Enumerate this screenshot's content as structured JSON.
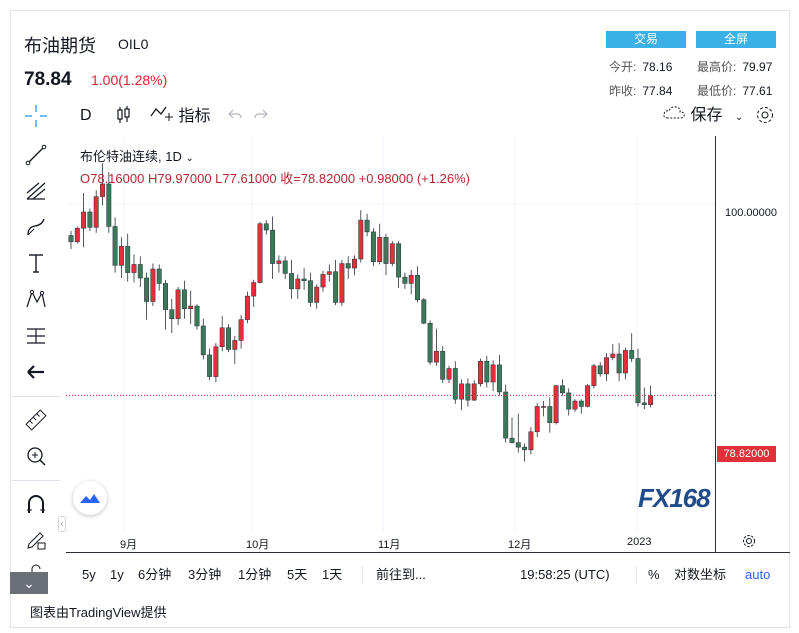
{
  "header": {
    "symbol_name": "布油期货",
    "symbol_code": "OIL0",
    "last_price": "78.84",
    "change": "1.00(1.28%)",
    "trade_button": "交易",
    "fullscreen_button": "全屏",
    "stats": {
      "open_label": "今开:",
      "open": "78.16",
      "high_label": "最高价:",
      "high": "79.97",
      "prev_close_label": "昨收:",
      "prev_close": "77.84",
      "low_label": "最低价:",
      "low": "77.61"
    }
  },
  "toolbar": {
    "interval": "D",
    "indicators_label": "指标",
    "save_label": "保存"
  },
  "legend": {
    "title": "布伦特油连续, 1D",
    "ohlc": "O78.16000  H79.97000  L77.61000  收=78.82000  +0.98000 (+1.26%)"
  },
  "price_axis": {
    "level_label": "100.00000",
    "current_price_tag": "78.82000"
  },
  "time_axis": {
    "ticks": [
      "9月",
      "10月",
      "11月",
      "12月",
      "2023"
    ]
  },
  "bottom_bar": {
    "ranges": [
      "5y",
      "1y",
      "6分钟",
      "3分钟",
      "1分钟",
      "5天",
      "1天"
    ],
    "goto": "前往到...",
    "time": "19:58:25 (UTC)",
    "percent": "%",
    "log_scale": "对数坐标",
    "auto": "auto"
  },
  "credit": "图表由TradingView提供",
  "watermark": "FX168",
  "colors": {
    "up": "#e0303a",
    "down": "#3a7a5a",
    "accent": "#3ab0e6"
  },
  "chart_data": {
    "type": "candlestick",
    "x": [
      "9月",
      "10月",
      "11月",
      "12月",
      "2023"
    ],
    "ohlc": [
      [
        96.5,
        97,
        95,
        95.8
      ],
      [
        95.8,
        97.5,
        95.6,
        97.3
      ],
      [
        97.3,
        101.2,
        95.2,
        99.1
      ],
      [
        99.1,
        99.5,
        97,
        97.4
      ],
      [
        97.4,
        101.5,
        96.8,
        100.8
      ],
      [
        100.8,
        104.5,
        99.8,
        102.2
      ],
      [
        102.2,
        103.5,
        96.8,
        97.5
      ],
      [
        97.5,
        98.5,
        92.4,
        93.2
      ],
      [
        93.2,
        96.3,
        91.8,
        95.3
      ],
      [
        95.3,
        96.7,
        91.4,
        92.4
      ],
      [
        92.4,
        94.4,
        91.3,
        93.3
      ],
      [
        93.3,
        94.2,
        90.8,
        91.8
      ],
      [
        91.8,
        92.4,
        87.2,
        89.2
      ],
      [
        89.2,
        93.4,
        88.7,
        92.8
      ],
      [
        92.8,
        93.3,
        90.4,
        91.2
      ],
      [
        91.2,
        91.6,
        86.1,
        88.3
      ],
      [
        88.3,
        89.5,
        85.7,
        87.3
      ],
      [
        87.3,
        90.8,
        86.6,
        90.5
      ],
      [
        90.5,
        91.5,
        87.3,
        88.4
      ],
      [
        88.4,
        90.4,
        86.7,
        88.7
      ],
      [
        88.7,
        88.9,
        86.1,
        86.5
      ],
      [
        86.5,
        87.3,
        82.8,
        83.3
      ],
      [
        83.3,
        84,
        80.5,
        80.9
      ],
      [
        80.9,
        84.6,
        80.3,
        84.2
      ],
      [
        84.2,
        87.6,
        83.7,
        86.3
      ],
      [
        86.3,
        86.7,
        83.6,
        83.9
      ],
      [
        83.9,
        85.4,
        82.3,
        84.9
      ],
      [
        84.9,
        87.7,
        84,
        87.2
      ],
      [
        87.2,
        90.3,
        86.8,
        89.8
      ],
      [
        89.8,
        91.6,
        88.6,
        91.3
      ],
      [
        91.3,
        98,
        91.2,
        97.8
      ],
      [
        97.8,
        98.2,
        96.6,
        97.1
      ],
      [
        97.1,
        98.6,
        91.7,
        93.4
      ],
      [
        93.4,
        94.3,
        92.4,
        93.7
      ],
      [
        93.7,
        94.2,
        91.7,
        92.3
      ],
      [
        92.3,
        93.8,
        89.5,
        90.6
      ],
      [
        90.6,
        92.2,
        89.5,
        91.7
      ],
      [
        91.7,
        92.9,
        90.5,
        91.5
      ],
      [
        91.5,
        92.4,
        88.6,
        89.1
      ],
      [
        89.1,
        91.1,
        88.4,
        90.8
      ],
      [
        90.8,
        92.6,
        90.3,
        92.2
      ],
      [
        92.2,
        93.3,
        91.4,
        92.5
      ],
      [
        92.5,
        93.8,
        88.8,
        89.1
      ],
      [
        89.1,
        93.8,
        88.7,
        93.4
      ],
      [
        93.4,
        94.2,
        91.7,
        92.9
      ],
      [
        92.9,
        94.3,
        92.1,
        93.9
      ],
      [
        93.9,
        99.3,
        93.5,
        98.2
      ],
      [
        98.2,
        98.9,
        96.4,
        96.9
      ],
      [
        96.9,
        97.3,
        93.1,
        93.6
      ],
      [
        93.6,
        97.8,
        93.3,
        96.3
      ],
      [
        96.3,
        96.7,
        92.1,
        93.4
      ],
      [
        93.4,
        95.9,
        93.1,
        95.6
      ],
      [
        95.6,
        95.9,
        90.7,
        91.9
      ],
      [
        91.9,
        92.4,
        90.6,
        91.2
      ],
      [
        91.2,
        92.7,
        90,
        92.1
      ],
      [
        92.1,
        93.1,
        89.1,
        89.4
      ],
      [
        89.4,
        89.6,
        86.7,
        86.8
      ],
      [
        86.8,
        87.1,
        82.2,
        82.5
      ],
      [
        82.5,
        86.2,
        82.1,
        83.7
      ],
      [
        83.7,
        84.3,
        80.2,
        80.6
      ],
      [
        80.6,
        82.1,
        80.2,
        81.8
      ],
      [
        81.8,
        82.6,
        77.9,
        78.4
      ],
      [
        78.4,
        80.6,
        77.2,
        80.1
      ],
      [
        80.1,
        80.7,
        77.6,
        78.3
      ],
      [
        78.3,
        80.5,
        78.2,
        80.1
      ],
      [
        80.1,
        82.9,
        79.8,
        82.6
      ],
      [
        82.6,
        83.2,
        79.7,
        80.3
      ],
      [
        80.3,
        82.7,
        79.3,
        82.2
      ],
      [
        82.2,
        83.3,
        78.8,
        79.2
      ],
      [
        79.2,
        80,
        73.6,
        74.1
      ],
      [
        74.1,
        76.4,
        73.5,
        73.6
      ],
      [
        73.6,
        76.8,
        72.5,
        73.1
      ],
      [
        73.1,
        73.5,
        71.5,
        72.8
      ],
      [
        72.8,
        75.3,
        72.3,
        74.8
      ],
      [
        74.8,
        78,
        74.2,
        77.6
      ],
      [
        77.6,
        78.2,
        76.5,
        77.6
      ],
      [
        77.6,
        78.6,
        74.7,
        75.8
      ],
      [
        75.8,
        80,
        75.6,
        79.9
      ],
      [
        79.9,
        80.6,
        78.8,
        79.1
      ],
      [
        79.1,
        79.6,
        76.6,
        77.3
      ],
      [
        77.3,
        78.4,
        77,
        78.2
      ],
      [
        78.2,
        78.4,
        76.8,
        77.6
      ],
      [
        77.6,
        80.1,
        77.5,
        79.9
      ],
      [
        79.9,
        82.3,
        79.6,
        82.1
      ],
      [
        82.1,
        82.5,
        80.9,
        81.2
      ],
      [
        81.2,
        83.5,
        80.4,
        83
      ],
      [
        83,
        84.5,
        82.7,
        83.4
      ],
      [
        83.4,
        84.6,
        80.4,
        81.3
      ],
      [
        81.3,
        84.1,
        80.6,
        83.8
      ],
      [
        83.8,
        85.7,
        82.5,
        82.9
      ],
      [
        82.9,
        84,
        77.6,
        78
      ],
      [
        78,
        79.7,
        77.3,
        77.8
      ],
      [
        77.8,
        79.9,
        77.5,
        78.8
      ]
    ],
    "price_level_shown": 100,
    "last_close": 78.82,
    "xlabel": "",
    "ylabel": ""
  }
}
